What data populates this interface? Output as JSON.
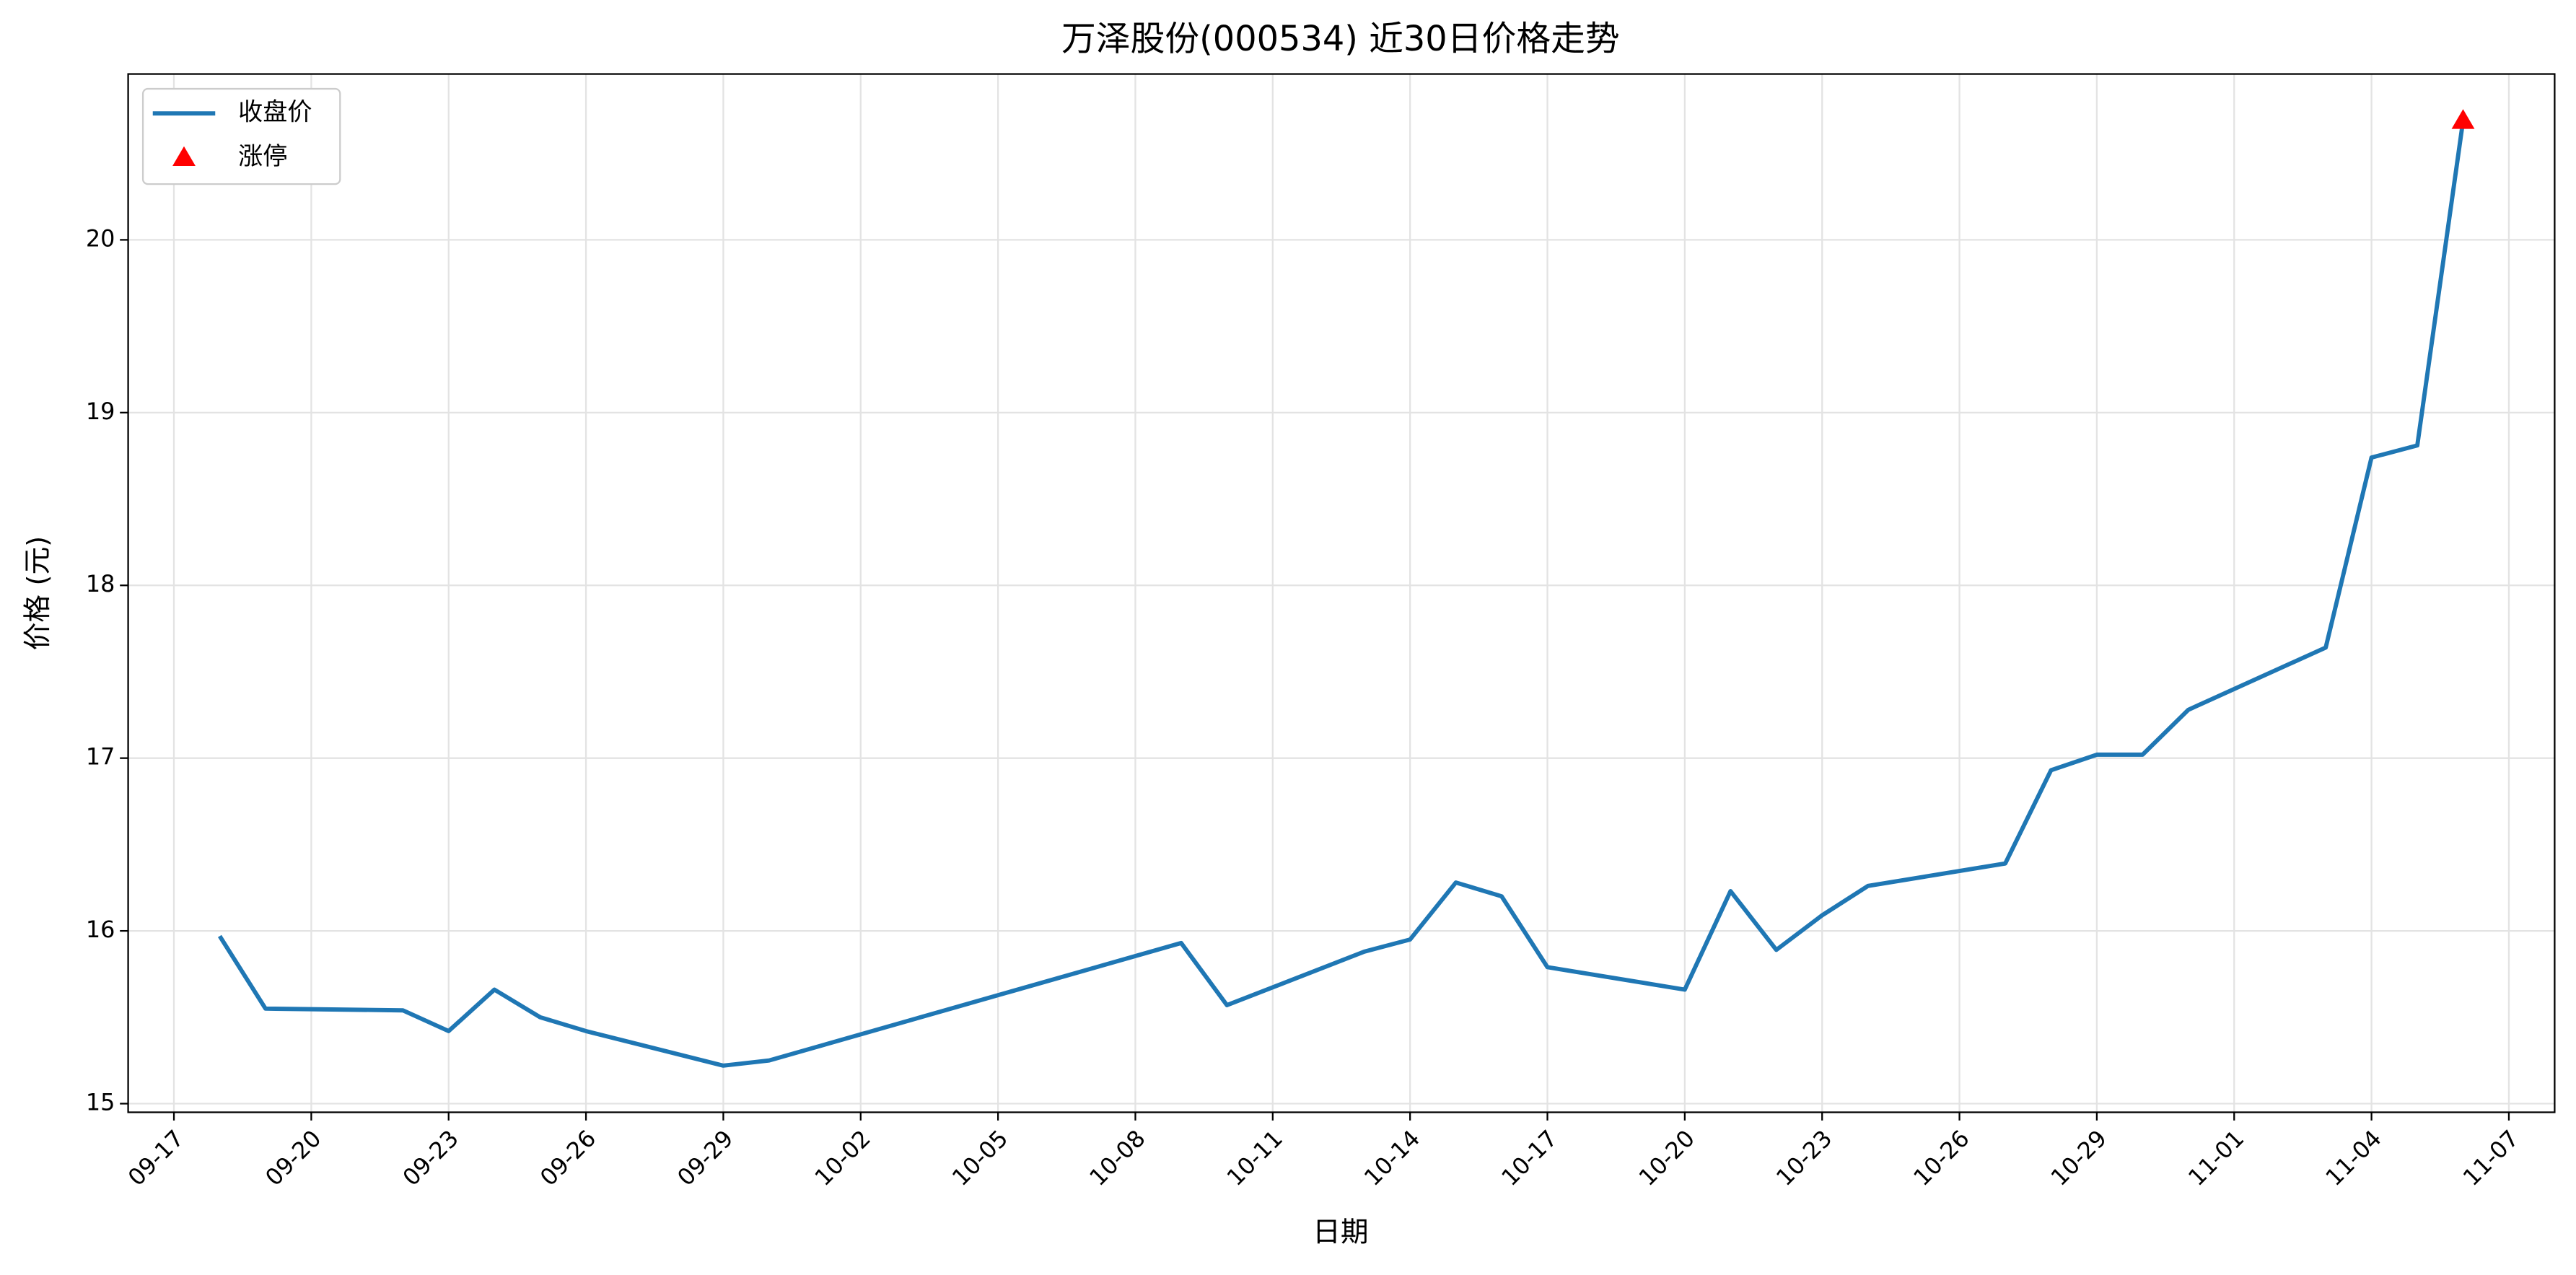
{
  "chart_data": {
    "type": "line",
    "title": "万泽股份(000534) 近30日价格走势",
    "xlabel": "日期",
    "ylabel": "价格 (元)",
    "x": [
      "09-18",
      "09-19",
      "09-22",
      "09-23",
      "09-24",
      "09-25",
      "09-26",
      "09-29",
      "09-30",
      "10-09",
      "10-10",
      "10-13",
      "10-14",
      "10-15",
      "10-16",
      "10-17",
      "10-20",
      "10-21",
      "10-22",
      "10-23",
      "10-24",
      "10-27",
      "10-28",
      "10-29",
      "10-30",
      "10-31",
      "11-03",
      "11-04",
      "11-05",
      "11-06"
    ],
    "series": [
      {
        "name": "收盘价",
        "color": "#1f77b4",
        "values": [
          15.97,
          15.55,
          15.54,
          15.42,
          15.66,
          15.5,
          15.42,
          15.22,
          15.25,
          15.93,
          15.57,
          15.88,
          15.95,
          16.28,
          16.2,
          15.79,
          15.66,
          16.23,
          15.89,
          16.09,
          16.26,
          16.39,
          16.93,
          17.02,
          17.02,
          17.28,
          17.64,
          18.74,
          18.81,
          20.69
        ]
      },
      {
        "name": "涨停",
        "color": "#ff0000",
        "marker": "triangle",
        "x": [
          "11-06"
        ],
        "values": [
          20.69
        ]
      }
    ],
    "xlim": [
      "09-16",
      "11-08"
    ],
    "xticks": [
      "09-17",
      "09-20",
      "09-23",
      "09-26",
      "09-29",
      "10-02",
      "10-05",
      "10-08",
      "10-11",
      "10-14",
      "10-17",
      "10-20",
      "10-23",
      "10-26",
      "10-29",
      "11-01",
      "11-04",
      "11-07"
    ],
    "ylim": [
      14.95,
      20.96
    ],
    "yticks": [
      15,
      16,
      17,
      18,
      19,
      20
    ],
    "grid": true,
    "legend": "upper-left"
  }
}
